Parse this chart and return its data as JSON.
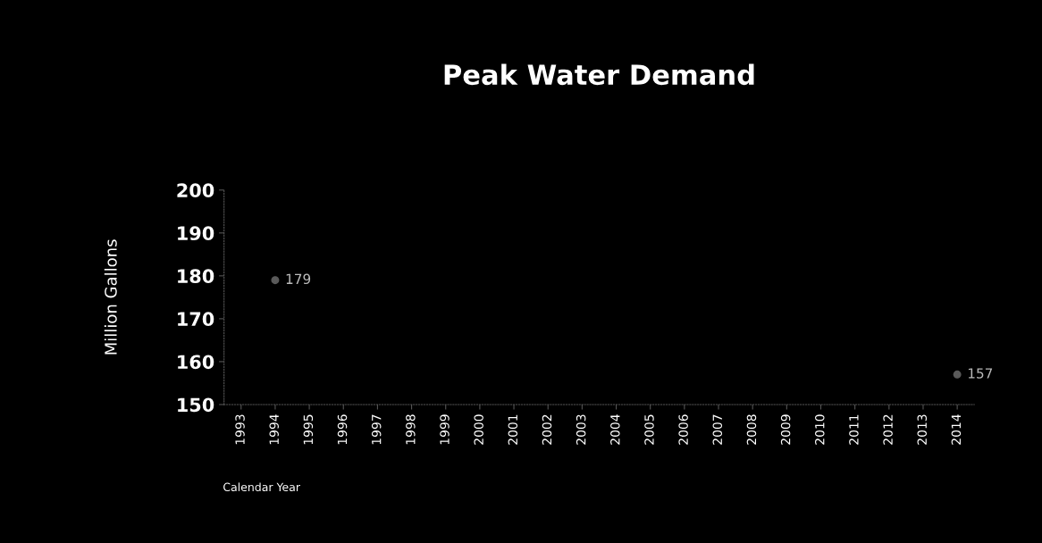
{
  "chart_data": {
    "type": "scatter",
    "title": "Peak Water Demand",
    "xlabel": "Calendar Year",
    "ylabel": "Million Gallons",
    "categories": [
      "1993",
      "1994",
      "1995",
      "1996",
      "1997",
      "1998",
      "1999",
      "2000",
      "2001",
      "2002",
      "2003",
      "2004",
      "2005",
      "2006",
      "2007",
      "2008",
      "2009",
      "2010",
      "2011",
      "2012",
      "2013",
      "2014"
    ],
    "series": [
      {
        "color": "#5a5a5a",
        "values": [
          null,
          179,
          null,
          null,
          null,
          null,
          null,
          null,
          null,
          null,
          null,
          null,
          null,
          null,
          null,
          null,
          null,
          null,
          null,
          null,
          null,
          157
        ],
        "value_labels": [
          null,
          "179",
          null,
          null,
          null,
          null,
          null,
          null,
          null,
          null,
          null,
          null,
          null,
          null,
          null,
          null,
          null,
          null,
          null,
          null,
          null,
          "157"
        ]
      }
    ],
    "ylim": [
      150,
      200
    ],
    "yticks": [
      150,
      160,
      170,
      180,
      190,
      200
    ],
    "marker": "circle"
  }
}
